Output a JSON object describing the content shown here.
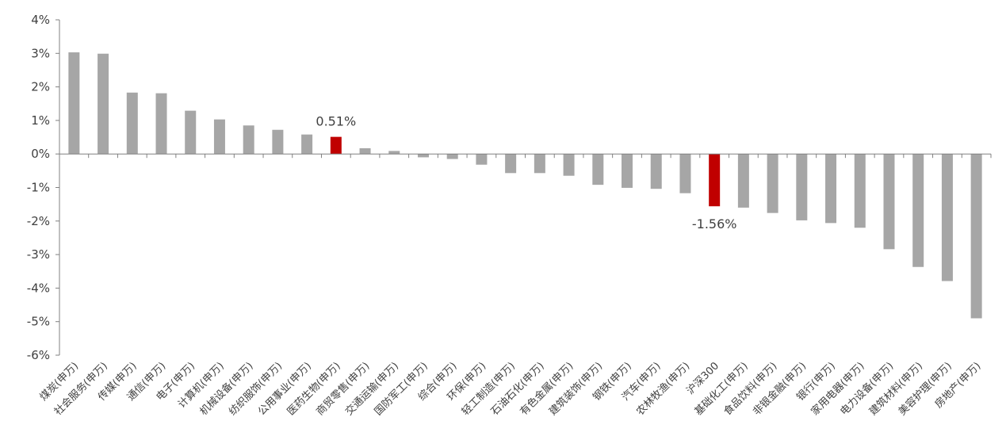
{
  "chart_data": {
    "type": "bar",
    "categories": [
      "煤炭(申万)",
      "社会服务(申万)",
      "传媒(申万)",
      "通信(申万)",
      "电子(申万)",
      "计算机(申万)",
      "机械设备(申万)",
      "纺织服饰(申万)",
      "公用事业(申万)",
      "医药生物(申万)",
      "商贸零售(申万)",
      "交通运输(申万)",
      "国防军工(申万)",
      "综合(申万)",
      "环保(申万)",
      "轻工制造(申万)",
      "石油石化(申万)",
      "有色金属(申万)",
      "建筑装饰(申万)",
      "钢铁(申万)",
      "汽车(申万)",
      "农林牧渔(申万)",
      "沪深300",
      "基础化工(申万)",
      "食品饮料(申万)",
      "非银金融(申万)",
      "银行(申万)",
      "家用电器(申万)",
      "电力设备(申万)",
      "建筑材料(申万)",
      "美容护理(申万)",
      "房地产(申万)"
    ],
    "values": [
      3.03,
      2.99,
      1.83,
      1.81,
      1.29,
      1.03,
      0.85,
      0.72,
      0.58,
      0.51,
      0.17,
      0.09,
      -0.1,
      -0.15,
      -0.32,
      -0.57,
      -0.57,
      -0.65,
      -0.92,
      -1.01,
      -1.04,
      -1.17,
      -1.56,
      -1.6,
      -1.76,
      -1.98,
      -2.06,
      -2.2,
      -2.84,
      -3.37,
      -3.79,
      -4.9
    ],
    "colors": [
      "#a6a6a6",
      "#a6a6a6",
      "#a6a6a6",
      "#a6a6a6",
      "#a6a6a6",
      "#a6a6a6",
      "#a6a6a6",
      "#a6a6a6",
      "#a6a6a6",
      "#c00000",
      "#a6a6a6",
      "#a6a6a6",
      "#a6a6a6",
      "#a6a6a6",
      "#a6a6a6",
      "#a6a6a6",
      "#a6a6a6",
      "#a6a6a6",
      "#a6a6a6",
      "#a6a6a6",
      "#a6a6a6",
      "#a6a6a6",
      "#c00000",
      "#a6a6a6",
      "#a6a6a6",
      "#a6a6a6",
      "#a6a6a6",
      "#a6a6a6",
      "#a6a6a6",
      "#a6a6a6",
      "#a6a6a6",
      "#a6a6a6"
    ],
    "data_labels": [
      {
        "category": "医药生物(申万)",
        "text": "0.51%"
      },
      {
        "category": "沪深300",
        "text": "-1.56%"
      }
    ],
    "yticks": [
      "4%",
      "3%",
      "2%",
      "1%",
      "0%",
      "-1%",
      "-2%",
      "-3%",
      "-4%",
      "-5%",
      "-6%"
    ],
    "ylim": [
      -6,
      4
    ],
    "grid": false,
    "legend": "none",
    "title": "",
    "xlabel": "",
    "ylabel": ""
  }
}
